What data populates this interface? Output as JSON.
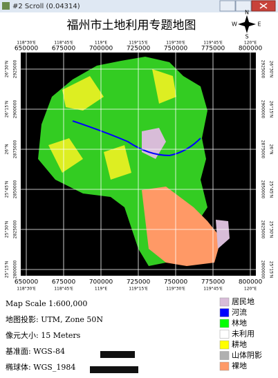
{
  "window": {
    "title": "#2 Scroll (0.04314)"
  },
  "map": {
    "title": "福州市土地利用专题地图",
    "north_arrow": {
      "n": "N",
      "s": "S",
      "e": "E",
      "w": "W"
    },
    "lon_labels": [
      "118°30'E",
      "118°45'E",
      "119°E",
      "119°15'E",
      "119°30'E",
      "119°45'E",
      "120°E"
    ],
    "easting_labels": [
      "650000",
      "675000",
      "700000",
      "725000",
      "750000",
      "775000",
      "800000"
    ],
    "lat_labels": [
      "26°30'N",
      "26°15'N",
      "26°N",
      "25°45'N",
      "25°30'N",
      "25°15'N"
    ],
    "northing_labels": [
      "2925000",
      "2900000",
      "2875000",
      "2850000",
      "2825000",
      "2800000"
    ]
  },
  "info": [
    "Map Scale 1:600,000",
    "地图投影: UTM, Zone 50N",
    "像元大小: 15 Meters",
    "基准面:    WGS-84",
    "椭球体:  WGS_1984"
  ],
  "legend": [
    {
      "label": "居民地",
      "color": "#d8bcd8"
    },
    {
      "label": "河流",
      "color": "#0000ff"
    },
    {
      "label": "林地",
      "color": "#00ff00"
    },
    {
      "label": "未利用",
      "color": "#ffffff"
    },
    {
      "label": "耕地",
      "color": "#ffff00"
    },
    {
      "label": "山体阴影",
      "color": "#b0b0b0"
    },
    {
      "label": "裸地",
      "color": "#ff9966"
    }
  ]
}
